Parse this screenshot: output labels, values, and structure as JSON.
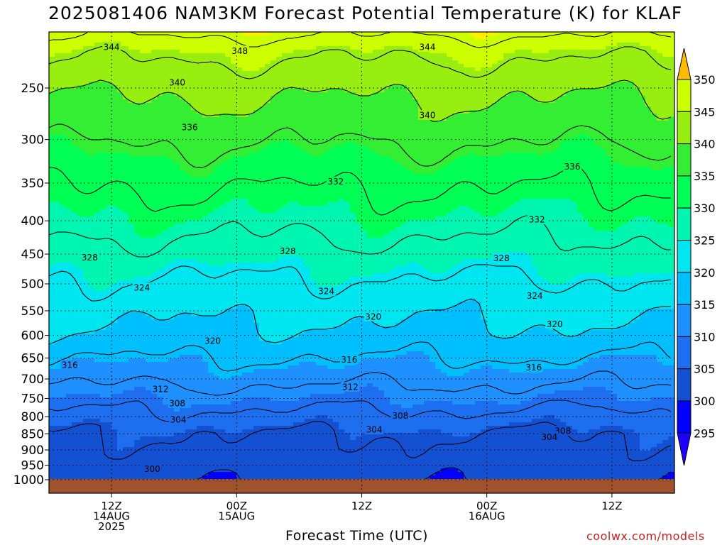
{
  "title": "2025081406 NAM3KM Forecast Potential Temperature (K) for KLAF",
  "x_axis_title": "Forecast Time (UTC)",
  "credit": "coolwx.com/models",
  "colors": {
    "ground": "#a0522d",
    "levels": [
      {
        "min": 295,
        "color": "#0000ff"
      },
      {
        "min": 300,
        "color": "#1450d2"
      },
      {
        "min": 305,
        "color": "#1e6ef0"
      },
      {
        "min": 310,
        "color": "#1e90ff"
      },
      {
        "min": 315,
        "color": "#00bfff"
      },
      {
        "min": 320,
        "color": "#00e6f0"
      },
      {
        "min": 325,
        "color": "#00f5b0"
      },
      {
        "min": 330,
        "color": "#00ff55"
      },
      {
        "min": 335,
        "color": "#33ee33"
      },
      {
        "min": 340,
        "color": "#99ee11"
      },
      {
        "min": 345,
        "color": "#ccff00"
      },
      {
        "min": 350,
        "color": "#ffee00"
      },
      {
        "min": 355,
        "color": "#ffbb00"
      }
    ]
  },
  "chart_data": {
    "type": "heatmap",
    "title": "2025081406 NAM3KM Forecast Potential Temperature (K) for KLAF",
    "xlabel": "Forecast Time (UTC)",
    "ylabel": "",
    "x_ticks": [
      {
        "hour": 6,
        "lines": [
          "12Z",
          "14AUG",
          "2025"
        ]
      },
      {
        "hour": 18,
        "lines": [
          "00Z",
          "15AUG"
        ]
      },
      {
        "hour": 30,
        "lines": [
          "12Z"
        ]
      },
      {
        "hour": 42,
        "lines": [
          "00Z",
          "16AUG"
        ]
      },
      {
        "hour": 54,
        "lines": [
          "12Z"
        ]
      }
    ],
    "xlim_hours": [
      0,
      60
    ],
    "y_ticks": [
      1000,
      950,
      900,
      850,
      800,
      750,
      700,
      650,
      600,
      550,
      500,
      450,
      400,
      350,
      300,
      250
    ],
    "ylim_hpa": [
      1000,
      205
    ],
    "log_pressure_axis": true,
    "grid": true,
    "colorbar_ticks": [
      295,
      300,
      305,
      310,
      315,
      320,
      325,
      330,
      335,
      340,
      345,
      350
    ],
    "contour_interval": 4,
    "theta_profile": [
      {
        "p": 1000,
        "t": 301
      },
      {
        "p": 950,
        "t": 302
      },
      {
        "p": 900,
        "t": 303
      },
      {
        "p": 850,
        "t": 304
      },
      {
        "p": 800,
        "t": 307
      },
      {
        "p": 750,
        "t": 310
      },
      {
        "p": 700,
        "t": 313
      },
      {
        "p": 650,
        "t": 316
      },
      {
        "p": 600,
        "t": 319
      },
      {
        "p": 550,
        "t": 321
      },
      {
        "p": 500,
        "t": 323.5
      },
      {
        "p": 450,
        "t": 326.5
      },
      {
        "p": 400,
        "t": 329.5
      },
      {
        "p": 350,
        "t": 332.5
      },
      {
        "p": 300,
        "t": 336.5
      },
      {
        "p": 250,
        "t": 341
      },
      {
        "p": 220,
        "t": 345
      },
      {
        "p": 205,
        "t": 349
      }
    ],
    "contour_labels": [
      {
        "value": "344",
        "hour": 6.0,
        "p": 216
      },
      {
        "value": "348",
        "hour": 18.3,
        "p": 219
      },
      {
        "value": "344",
        "hour": 36.3,
        "p": 216
      },
      {
        "value": "340",
        "hour": 12.3,
        "p": 245
      },
      {
        "value": "340",
        "hour": 36.3,
        "p": 275
      },
      {
        "value": "336",
        "hour": 13.5,
        "p": 287
      },
      {
        "value": "336",
        "hour": 50.2,
        "p": 330
      },
      {
        "value": "332",
        "hour": 27.5,
        "p": 348
      },
      {
        "value": "332",
        "hour": 46.8,
        "p": 398
      },
      {
        "value": "328",
        "hour": 3.9,
        "p": 455
      },
      {
        "value": "328",
        "hour": 22.9,
        "p": 445
      },
      {
        "value": "328",
        "hour": 43.4,
        "p": 456
      },
      {
        "value": "324",
        "hour": 8.9,
        "p": 506
      },
      {
        "value": "324",
        "hour": 26.6,
        "p": 513
      },
      {
        "value": "324",
        "hour": 46.6,
        "p": 521
      },
      {
        "value": "320",
        "hour": 31.1,
        "p": 561
      },
      {
        "value": "320",
        "hour": 48.5,
        "p": 576
      },
      {
        "value": "320",
        "hour": 15.7,
        "p": 611
      },
      {
        "value": "316",
        "hour": 2.0,
        "p": 666
      },
      {
        "value": "316",
        "hour": 28.8,
        "p": 653
      },
      {
        "value": "316",
        "hour": 46.5,
        "p": 672
      },
      {
        "value": "312",
        "hour": 10.7,
        "p": 725
      },
      {
        "value": "312",
        "hour": 28.9,
        "p": 720
      },
      {
        "value": "308",
        "hour": 12.3,
        "p": 762
      },
      {
        "value": "308",
        "hour": 33.7,
        "p": 797
      },
      {
        "value": "308",
        "hour": 49.3,
        "p": 841
      },
      {
        "value": "304",
        "hour": 12.4,
        "p": 808
      },
      {
        "value": "304",
        "hour": 31.2,
        "p": 837
      },
      {
        "value": "304",
        "hour": 48.0,
        "p": 859
      },
      {
        "value": "300",
        "hour": 9.9,
        "p": 962
      }
    ]
  }
}
